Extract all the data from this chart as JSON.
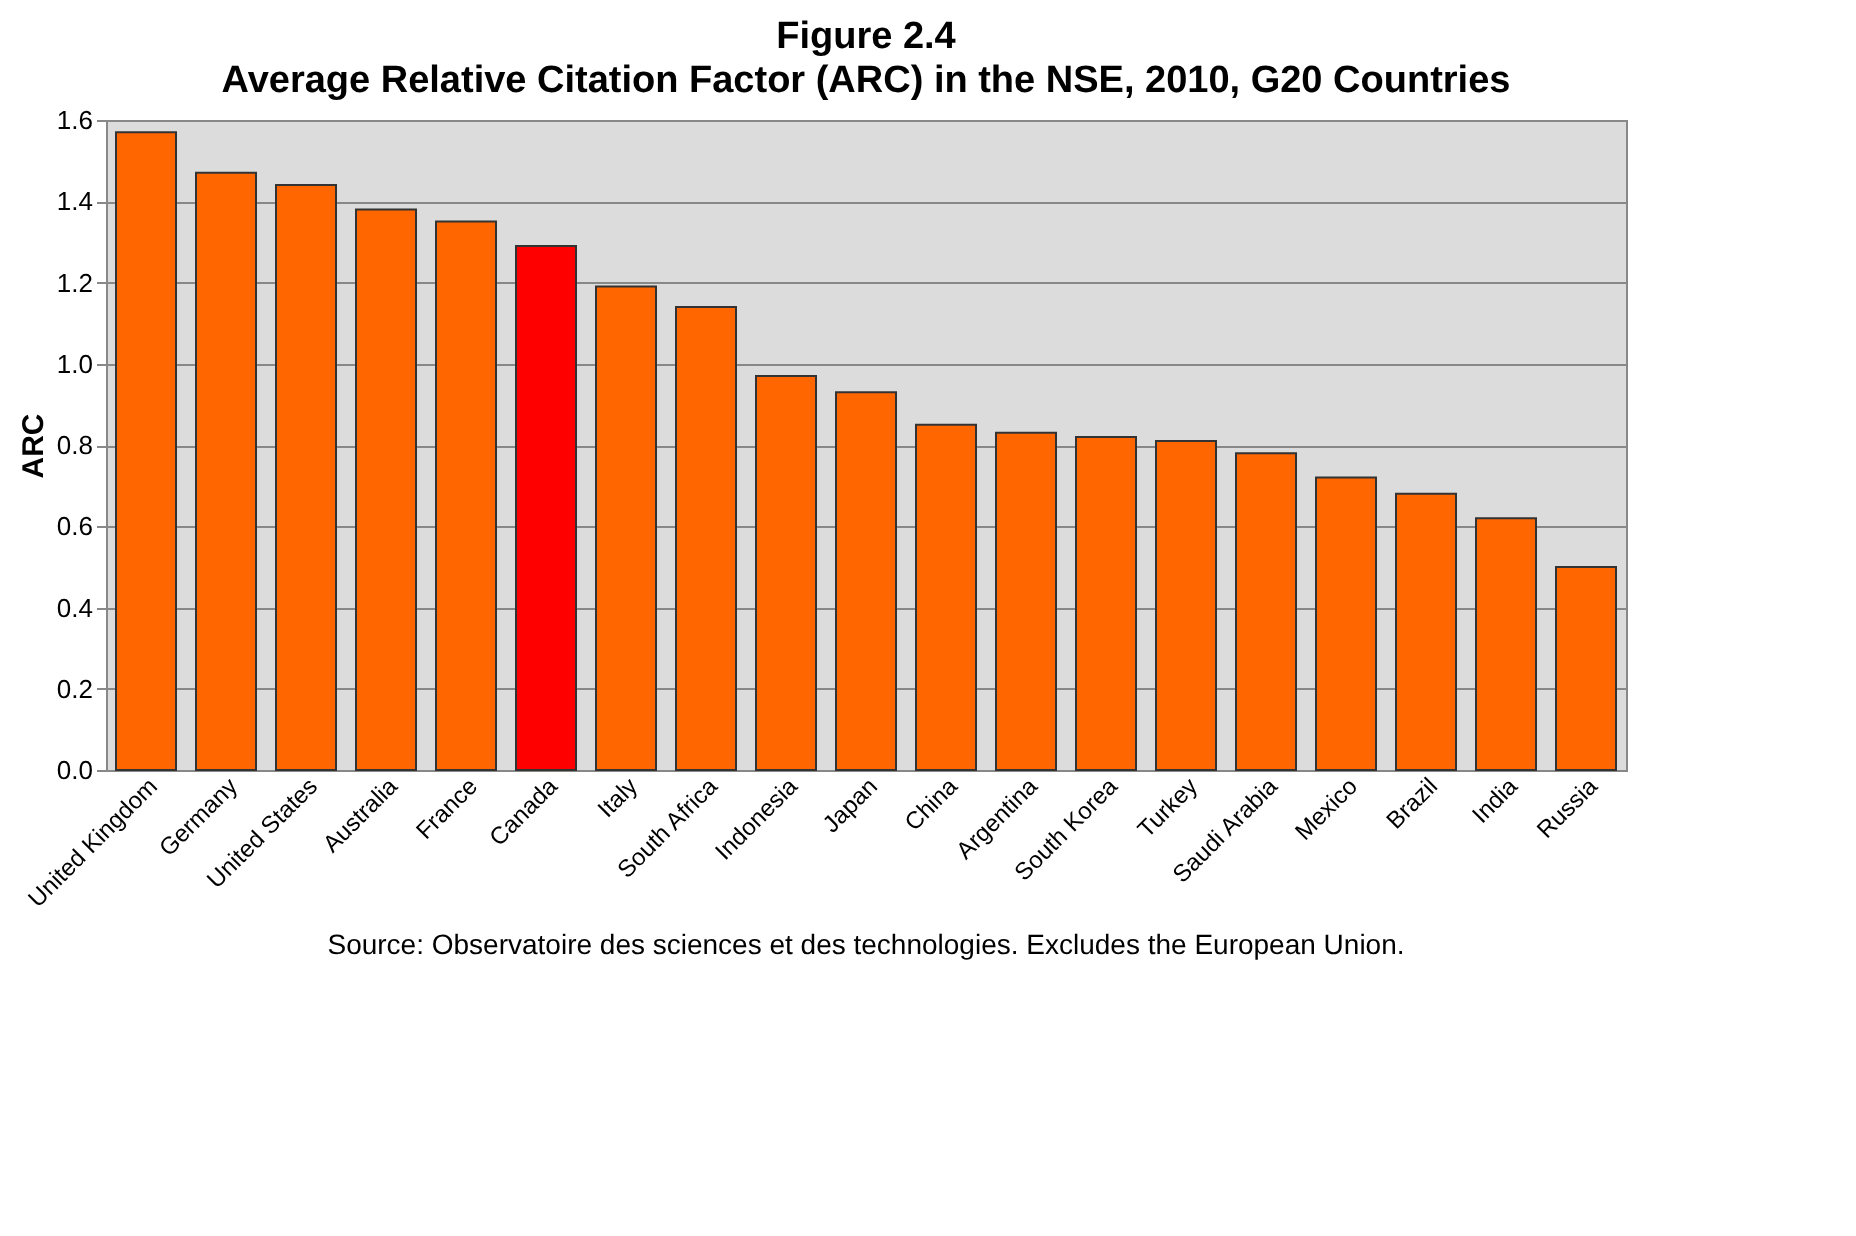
{
  "chart_data": {
    "type": "bar",
    "title": "Figure 2.4",
    "subtitle": "Average Relative Citation Factor (ARC) in the NSE, 2010, G20 Countries",
    "ylabel": "ARC",
    "categories": [
      "United Kingdom",
      "Germany",
      "United States",
      "Australia",
      "France",
      "Canada",
      "Italy",
      "South Africa",
      "Indonesia",
      "Japan",
      "China",
      "Argentina",
      "South Korea",
      "Turkey",
      "Saudi Arabia",
      "Mexico",
      "Brazil",
      "India",
      "Russia"
    ],
    "values": [
      1.57,
      1.47,
      1.44,
      1.38,
      1.35,
      1.29,
      1.19,
      1.14,
      0.97,
      0.93,
      0.85,
      0.83,
      0.82,
      0.81,
      0.78,
      0.72,
      0.68,
      0.62,
      0.5
    ],
    "colors": [
      "#ff6600",
      "#ff6600",
      "#ff6600",
      "#ff6600",
      "#ff6600",
      "#ff0000",
      "#ff6600",
      "#ff6600",
      "#ff6600",
      "#ff6600",
      "#ff6600",
      "#ff6600",
      "#ff6600",
      "#ff6600",
      "#ff6600",
      "#ff6600",
      "#ff6600",
      "#ff6600",
      "#ff6600"
    ],
    "ylim": [
      0,
      1.6
    ],
    "yticks": [
      {
        "value": 0,
        "label": "0.0"
      },
      {
        "value": 0.2,
        "label": "0.2"
      },
      {
        "value": 0.4,
        "label": "0.4"
      },
      {
        "value": 0.6,
        "label": "0.6"
      },
      {
        "value": 0.8,
        "label": "0.8"
      },
      {
        "value": 1.0,
        "label": "1.0"
      },
      {
        "value": 1.2,
        "label": "1.2"
      },
      {
        "value": 1.4,
        "label": "1.4"
      },
      {
        "value": 1.6,
        "label": "1.6"
      }
    ],
    "grid": "y",
    "annotations": [
      "Source: Observatoire des sciences et des technologies. Excludes the European Union."
    ]
  }
}
